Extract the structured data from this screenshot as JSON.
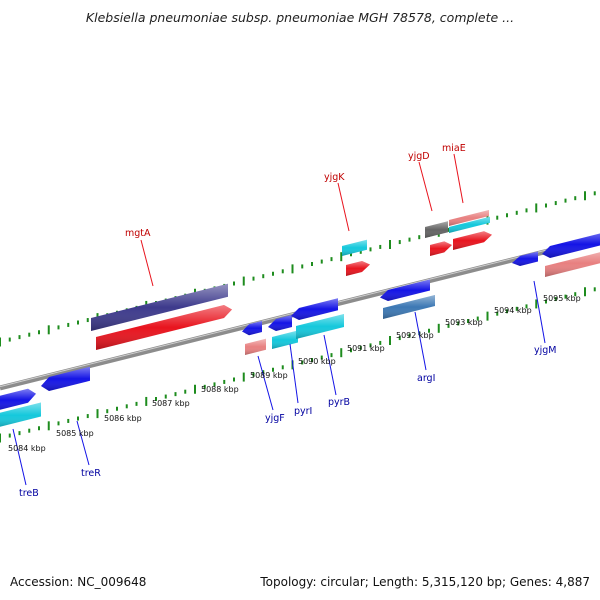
{
  "title": "Klebsiella pneumoniae subsp. pneumoniae MGH 78578, complete ...",
  "footer": {
    "accession": "Accession: NC_009648",
    "summary": "Topology: circular; Length: 5,315,120 bp; Genes: 4,887"
  },
  "colors": {
    "backbone": "#8c8c8c",
    "ticks": "#1e8c1e",
    "label_top": "#c00000",
    "label_bottom": "#0000a0",
    "navy": "#3d3a8c",
    "red": "#e8141e",
    "blue": "#1414e6",
    "cyan": "#14c8dc",
    "pink": "#e88080",
    "steel": "#3c78b4",
    "gray": "#646464"
  },
  "kbp_ticks": [
    "5084 kbp",
    "5085 kbp",
    "5086 kbp",
    "5087 kbp",
    "5088 kbp",
    "5089 kbp",
    "5090 kbp",
    "5091 kbp",
    "5092 kbp",
    "5093 kbp",
    "5094 kbp",
    "5095 kbp"
  ],
  "gene_labels_top": [
    "mgtA",
    "yjgK",
    "yjgD",
    "miaE"
  ],
  "gene_labels_bottom": [
    "treB",
    "treR",
    "yjgF",
    "pyrI",
    "pyrB",
    "argI",
    "yjgM"
  ]
}
